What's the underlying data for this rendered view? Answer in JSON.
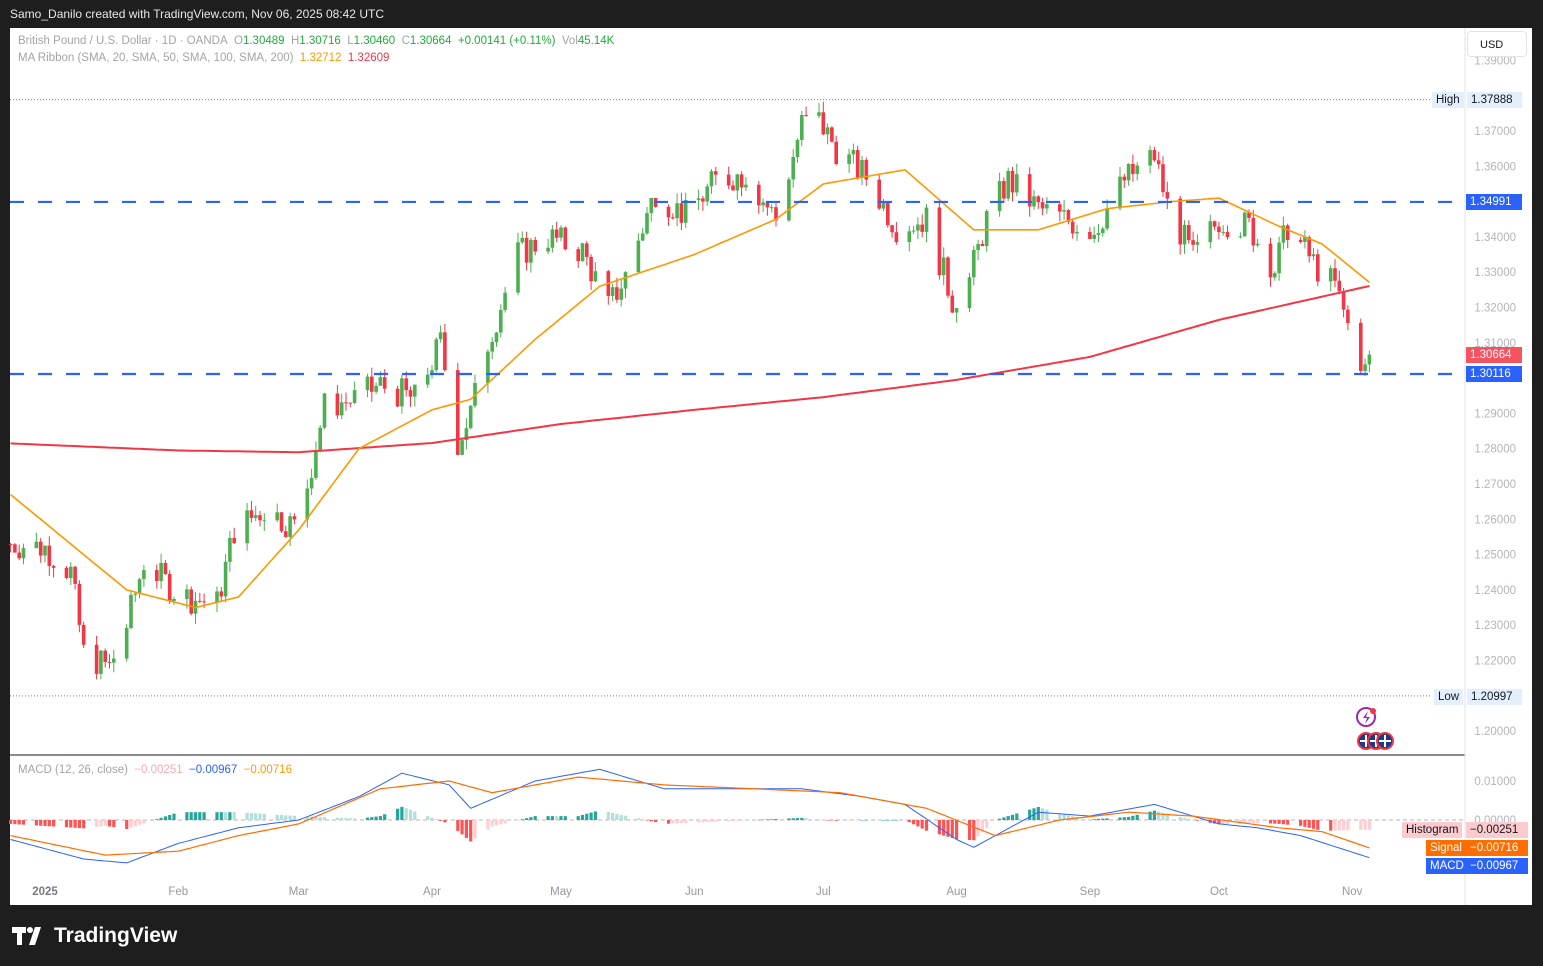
{
  "credit": "Samo_Danilo created with TradingView.com, Nov 06, 2025 08:42 UTC",
  "legend": {
    "symbol": "British Pound / U.S. Dollar · 1D · OANDA",
    "o_label": "O",
    "o": "1.30489",
    "h_label": "H",
    "h": "1.30716",
    "l_label": "L",
    "l": "1.30460",
    "c_label": "C",
    "c": "1.30664",
    "change": "+0.00141 (+0.11%)",
    "vol_label": "Vol",
    "vol": "45.14K",
    "ma": "MA Ribbon (SMA, 20, SMA, 50, SMA, 100, SMA, 200)",
    "ma1": "1.32712",
    "ma2": "1.32609",
    "macd": "MACD (12, 26, close)",
    "macd_hist": "−0.00251",
    "macd_val": "−0.00967",
    "macd_sig": "−0.00716"
  },
  "currency": "USD",
  "brand": "TradingView",
  "colors": {
    "up": "#22ab94",
    "up_candle": "#4caf50",
    "down": "#f23645",
    "sma50": "#ff9800",
    "sma200": "#f23645",
    "level": "#2962ff",
    "macd": "#2962ff",
    "signal": "#ff6d00"
  },
  "icons": [
    "lightning-event-icon",
    "uk-flag-event-icon"
  ],
  "chart_data": [
    {
      "type": "candlestick",
      "title": "British Pound / U.S. Dollar · 1D · OANDA",
      "ylim": [
        1.195,
        1.395
      ],
      "yticks": [
        "1.39000",
        "1.37000",
        "1.36000",
        "1.34000",
        "1.33000",
        "1.32000",
        "1.31000",
        "1.29000",
        "1.28000",
        "1.27000",
        "1.26000",
        "1.25000",
        "1.24000",
        "1.23000",
        "1.22000",
        "1.20000"
      ],
      "xticks": [
        {
          "d": "2025-01-01",
          "t": "2025"
        },
        {
          "d": "2025-02-01",
          "t": "Feb"
        },
        {
          "d": "2025-03-01",
          "t": "Mar"
        },
        {
          "d": "2025-04-01",
          "t": "Apr"
        },
        {
          "d": "2025-05-01",
          "t": "May"
        },
        {
          "d": "2025-06-01",
          "t": "Jun"
        },
        {
          "d": "2025-07-01",
          "t": "Jul"
        },
        {
          "d": "2025-08-01",
          "t": "Aug"
        },
        {
          "d": "2025-09-01",
          "t": "Sep"
        },
        {
          "d": "2025-10-01",
          "t": "Oct"
        },
        {
          "d": "2025-11-01",
          "t": "Nov"
        }
      ],
      "close_path": [
        [
          "2024-12-24",
          1.253
        ],
        [
          "2025-01-01",
          1.252
        ],
        [
          "2025-01-07",
          1.245
        ],
        [
          "2025-01-10",
          1.222
        ],
        [
          "2025-01-13",
          1.22
        ],
        [
          "2025-01-16",
          1.218
        ],
        [
          "2025-01-20",
          1.23
        ],
        [
          "2025-01-24",
          1.248
        ],
        [
          "2025-01-31",
          1.24
        ],
        [
          "2025-02-03",
          1.238
        ],
        [
          "2025-02-10",
          1.236
        ],
        [
          "2025-02-14",
          1.257
        ],
        [
          "2025-02-21",
          1.263
        ],
        [
          "2025-02-28",
          1.258
        ],
        [
          "2025-03-03",
          1.27
        ],
        [
          "2025-03-07",
          1.292
        ],
        [
          "2025-03-14",
          1.294
        ],
        [
          "2025-03-20",
          1.298
        ],
        [
          "2025-03-28",
          1.294
        ],
        [
          "2025-04-03",
          1.31
        ],
        [
          "2025-04-07",
          1.282
        ],
        [
          "2025-04-10",
          1.29
        ],
        [
          "2025-04-14",
          1.31
        ],
        [
          "2025-04-21",
          1.335
        ],
        [
          "2025-04-28",
          1.34
        ],
        [
          "2025-05-06",
          1.336
        ],
        [
          "2025-05-12",
          1.32
        ],
        [
          "2025-05-16",
          1.329
        ],
        [
          "2025-05-23",
          1.353
        ],
        [
          "2025-05-30",
          1.346
        ],
        [
          "2025-06-06",
          1.356
        ],
        [
          "2025-06-13",
          1.358
        ],
        [
          "2025-06-20",
          1.345
        ],
        [
          "2025-06-26",
          1.372
        ],
        [
          "2025-06-30",
          1.373
        ],
        [
          "2025-07-04",
          1.365
        ],
        [
          "2025-07-11",
          1.357
        ],
        [
          "2025-07-18",
          1.343
        ],
        [
          "2025-07-25",
          1.345
        ],
        [
          "2025-07-31",
          1.322
        ],
        [
          "2025-08-04",
          1.328
        ],
        [
          "2025-08-08",
          1.345
        ],
        [
          "2025-08-13",
          1.356
        ],
        [
          "2025-08-20",
          1.348
        ],
        [
          "2025-08-26",
          1.345
        ],
        [
          "2025-09-02",
          1.342
        ],
        [
          "2025-09-09",
          1.356
        ],
        [
          "2025-09-16",
          1.363
        ],
        [
          "2025-09-19",
          1.349
        ],
        [
          "2025-09-25",
          1.334
        ],
        [
          "2025-10-01",
          1.345
        ],
        [
          "2025-10-08",
          1.343
        ],
        [
          "2025-10-14",
          1.331
        ],
        [
          "2025-10-17",
          1.343
        ],
        [
          "2025-10-24",
          1.331
        ],
        [
          "2025-10-28",
          1.326
        ],
        [
          "2025-10-31",
          1.315
        ],
        [
          "2025-11-04",
          1.302
        ],
        [
          "2025-11-05",
          1.30664
        ]
      ],
      "sma50": [
        [
          "2024-12-24",
          1.267
        ],
        [
          "2025-01-20",
          1.24
        ],
        [
          "2025-02-05",
          1.235
        ],
        [
          "2025-02-15",
          1.238
        ],
        [
          "2025-03-01",
          1.257
        ],
        [
          "2025-03-15",
          1.28
        ],
        [
          "2025-04-01",
          1.291
        ],
        [
          "2025-04-10",
          1.294
        ],
        [
          "2025-04-25",
          1.311
        ],
        [
          "2025-05-10",
          1.326
        ],
        [
          "2025-06-01",
          1.335
        ],
        [
          "2025-06-20",
          1.345
        ],
        [
          "2025-07-01",
          1.355
        ],
        [
          "2025-07-20",
          1.359
        ],
        [
          "2025-08-05",
          1.342
        ],
        [
          "2025-08-20",
          1.342
        ],
        [
          "2025-09-05",
          1.348
        ],
        [
          "2025-09-20",
          1.35
        ],
        [
          "2025-10-01",
          1.351
        ],
        [
          "2025-10-15",
          1.343
        ],
        [
          "2025-10-25",
          1.338
        ],
        [
          "2025-11-05",
          1.32712
        ]
      ],
      "sma200": [
        [
          "2024-12-24",
          1.2815
        ],
        [
          "2025-02-01",
          1.2795
        ],
        [
          "2025-03-01",
          1.279
        ],
        [
          "2025-04-01",
          1.2816
        ],
        [
          "2025-05-01",
          1.287
        ],
        [
          "2025-06-01",
          1.291
        ],
        [
          "2025-07-01",
          1.2946
        ],
        [
          "2025-08-01",
          1.2995
        ],
        [
          "2025-09-01",
          1.306
        ],
        [
          "2025-10-01",
          1.3165
        ],
        [
          "2025-11-01",
          1.325
        ],
        [
          "2025-11-05",
          1.32609
        ]
      ],
      "levels": [
        {
          "value": 1.34991,
          "label": "1.34991",
          "style": "dashed"
        },
        {
          "value": 1.30116,
          "label": "1.30116",
          "style": "dashed"
        }
      ],
      "high": {
        "label": "High",
        "value": 1.37888,
        "text": "1.37888"
      },
      "low": {
        "label": "Low",
        "value": 1.20997,
        "text": "1.20997"
      },
      "last": {
        "value": 1.30664,
        "text": "1.30664"
      }
    },
    {
      "type": "macd",
      "ylim": [
        -0.0135,
        0.016
      ],
      "yticks": [
        "0.01000",
        "0.00000"
      ],
      "macd": [
        [
          "2024-12-24",
          -0.005
        ],
        [
          "2025-01-10",
          -0.01
        ],
        [
          "2025-01-20",
          -0.011
        ],
        [
          "2025-02-01",
          -0.006
        ],
        [
          "2025-02-15",
          -0.002
        ],
        [
          "2025-03-01",
          0.0
        ],
        [
          "2025-03-15",
          0.006
        ],
        [
          "2025-03-25",
          0.012
        ],
        [
          "2025-04-05",
          0.009
        ],
        [
          "2025-04-10",
          0.003
        ],
        [
          "2025-04-25",
          0.01
        ],
        [
          "2025-05-10",
          0.013
        ],
        [
          "2025-05-25",
          0.008
        ],
        [
          "2025-06-10",
          0.008
        ],
        [
          "2025-06-26",
          0.008
        ],
        [
          "2025-07-10",
          0.006
        ],
        [
          "2025-07-20",
          0.004
        ],
        [
          "2025-08-01",
          -0.005
        ],
        [
          "2025-08-05",
          -0.007
        ],
        [
          "2025-08-20",
          0.002
        ],
        [
          "2025-09-01",
          0.001
        ],
        [
          "2025-09-16",
          0.004
        ],
        [
          "2025-10-01",
          -0.001
        ],
        [
          "2025-10-10",
          -0.002
        ],
        [
          "2025-10-20",
          -0.004
        ],
        [
          "2025-11-05",
          -0.00967
        ]
      ],
      "signal": [
        [
          "2024-12-24",
          -0.004
        ],
        [
          "2025-01-15",
          -0.009
        ],
        [
          "2025-02-01",
          -0.008
        ],
        [
          "2025-02-15",
          -0.004
        ],
        [
          "2025-03-01",
          -0.001
        ],
        [
          "2025-03-20",
          0.008
        ],
        [
          "2025-04-05",
          0.01
        ],
        [
          "2025-04-15",
          0.007
        ],
        [
          "2025-05-05",
          0.011
        ],
        [
          "2025-05-25",
          0.009
        ],
        [
          "2025-06-15",
          0.008
        ],
        [
          "2025-07-05",
          0.007
        ],
        [
          "2025-07-25",
          0.003
        ],
        [
          "2025-08-10",
          -0.004
        ],
        [
          "2025-08-25",
          0.0
        ],
        [
          "2025-09-10",
          0.002
        ],
        [
          "2025-09-25",
          0.001
        ],
        [
          "2025-10-15",
          -0.002
        ],
        [
          "2025-10-25",
          -0.003
        ],
        [
          "2025-11-05",
          -0.00716
        ]
      ],
      "labels": {
        "histogram": "Histogram",
        "signal": "Signal",
        "macd": "MACD"
      }
    }
  ]
}
